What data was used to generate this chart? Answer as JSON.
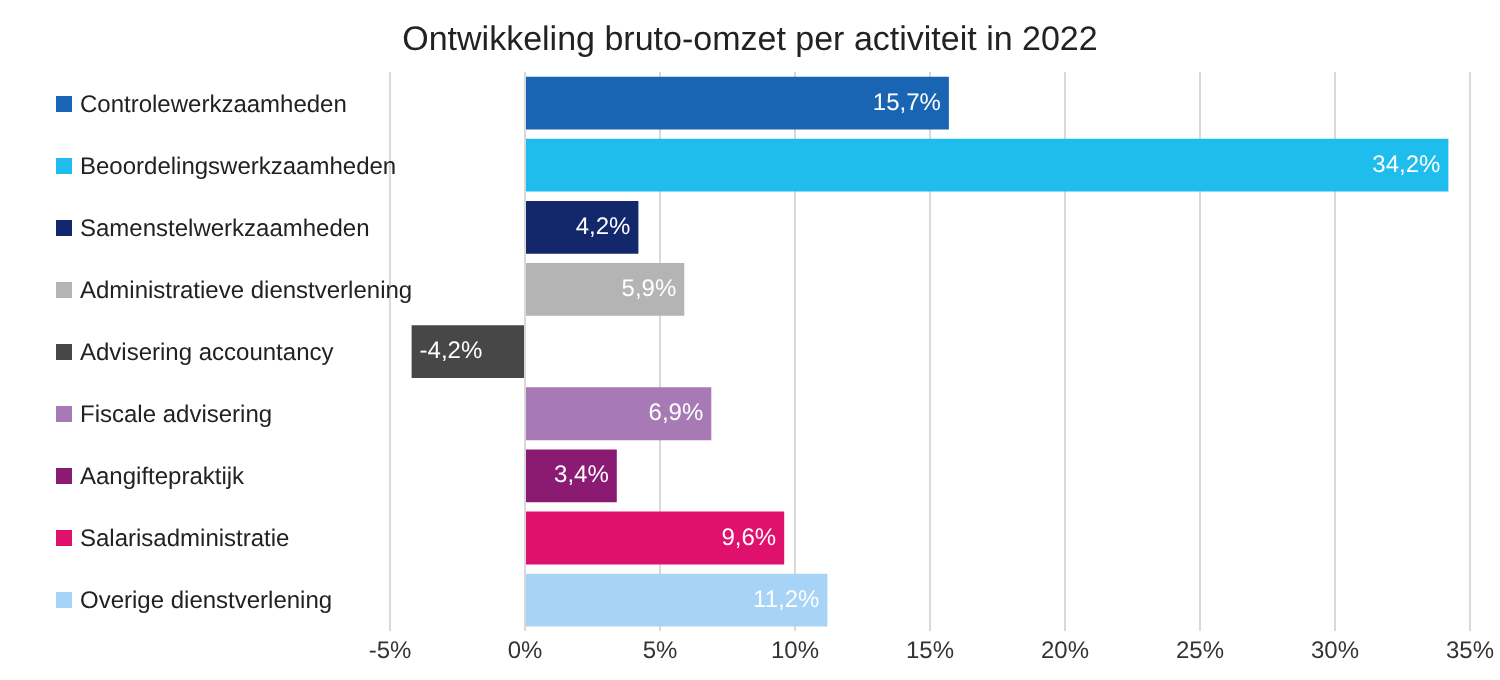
{
  "chart_data": {
    "type": "bar",
    "orientation": "horizontal",
    "title": "Ontwikkeling bruto-omzet per activiteit in 2022",
    "categories": [
      "Controlewerkzaamheden",
      "Beoordelingswerkzaamheden",
      "Samenstelwerkzaamheden",
      "Administratieve dienstverlening",
      "Advisering accountancy",
      "Fiscale advisering",
      "Aangiftepraktijk",
      "Salarisadministratie",
      "Overige dienstverlening"
    ],
    "values": [
      15.7,
      34.2,
      4.2,
      5.9,
      -4.2,
      6.9,
      3.4,
      9.6,
      11.2
    ],
    "colors": [
      "#1a64b4",
      "#1fbcee",
      "#13286a",
      "#b4b4b4",
      "#474747",
      "#a87ab5",
      "#8a1a72",
      "#e0106e",
      "#a6d3f6"
    ],
    "value_labels": [
      "15,7%",
      "34,2%",
      "4,2%",
      "5,9%",
      "-4,2%",
      "6,9%",
      "3,4%",
      "9,6%",
      "11,2%"
    ],
    "xlim": [
      -5,
      35
    ],
    "xticks": [
      {
        "value": -5,
        "label": "-5%"
      },
      {
        "value": 0,
        "label": "0%"
      },
      {
        "value": 5,
        "label": "5%"
      },
      {
        "value": 10,
        "label": "10%"
      },
      {
        "value": 15,
        "label": "15%"
      },
      {
        "value": 20,
        "label": "20%"
      },
      {
        "value": 25,
        "label": "25%"
      },
      {
        "value": 30,
        "label": "30%"
      },
      {
        "value": 35,
        "label": "35%"
      }
    ],
    "grid": "x"
  }
}
